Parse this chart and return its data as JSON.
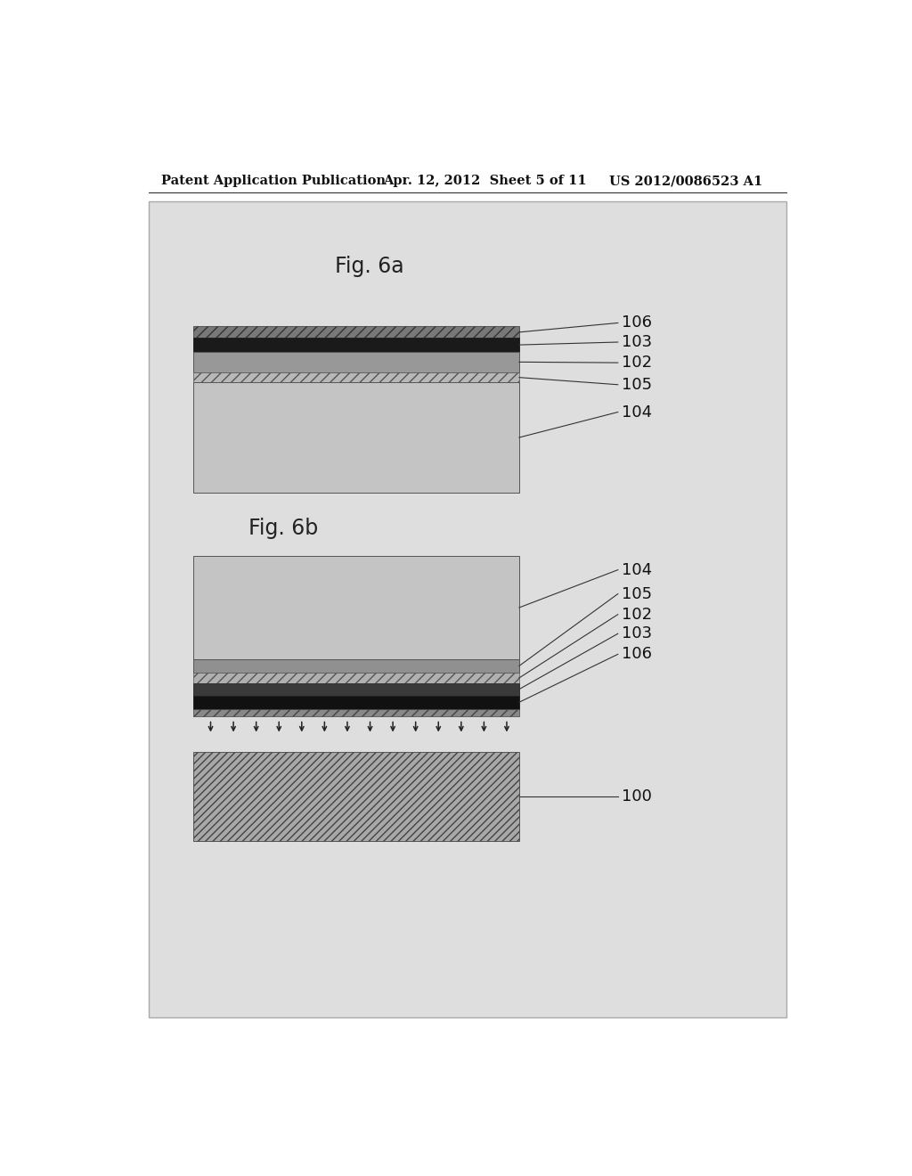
{
  "page_bg": "#ffffff",
  "content_bg": "#e0e0e0",
  "header_left": "Patent Application Publication",
  "header_center": "Apr. 12, 2012  Sheet 5 of 11",
  "header_right": "US 2012/0086523 A1",
  "fig6a_title": "Fig. 6a",
  "fig6b_title": "Fig. 6b",
  "fig6a_labels": [
    "106",
    "103",
    "102",
    "105",
    "104"
  ],
  "fig6b_labels": [
    "104",
    "105",
    "102",
    "103",
    "106"
  ],
  "fig6b_label_sub": "100",
  "layer_104_color": "#c0c0c0",
  "layer_103_color": "#1a1a1a",
  "layer_102_color": "#989898",
  "layer_105_hatch_fc": "#b8b8b8",
  "layer_106_hatch_fc": "#808080",
  "substrate_hatch_fc": "#909090"
}
